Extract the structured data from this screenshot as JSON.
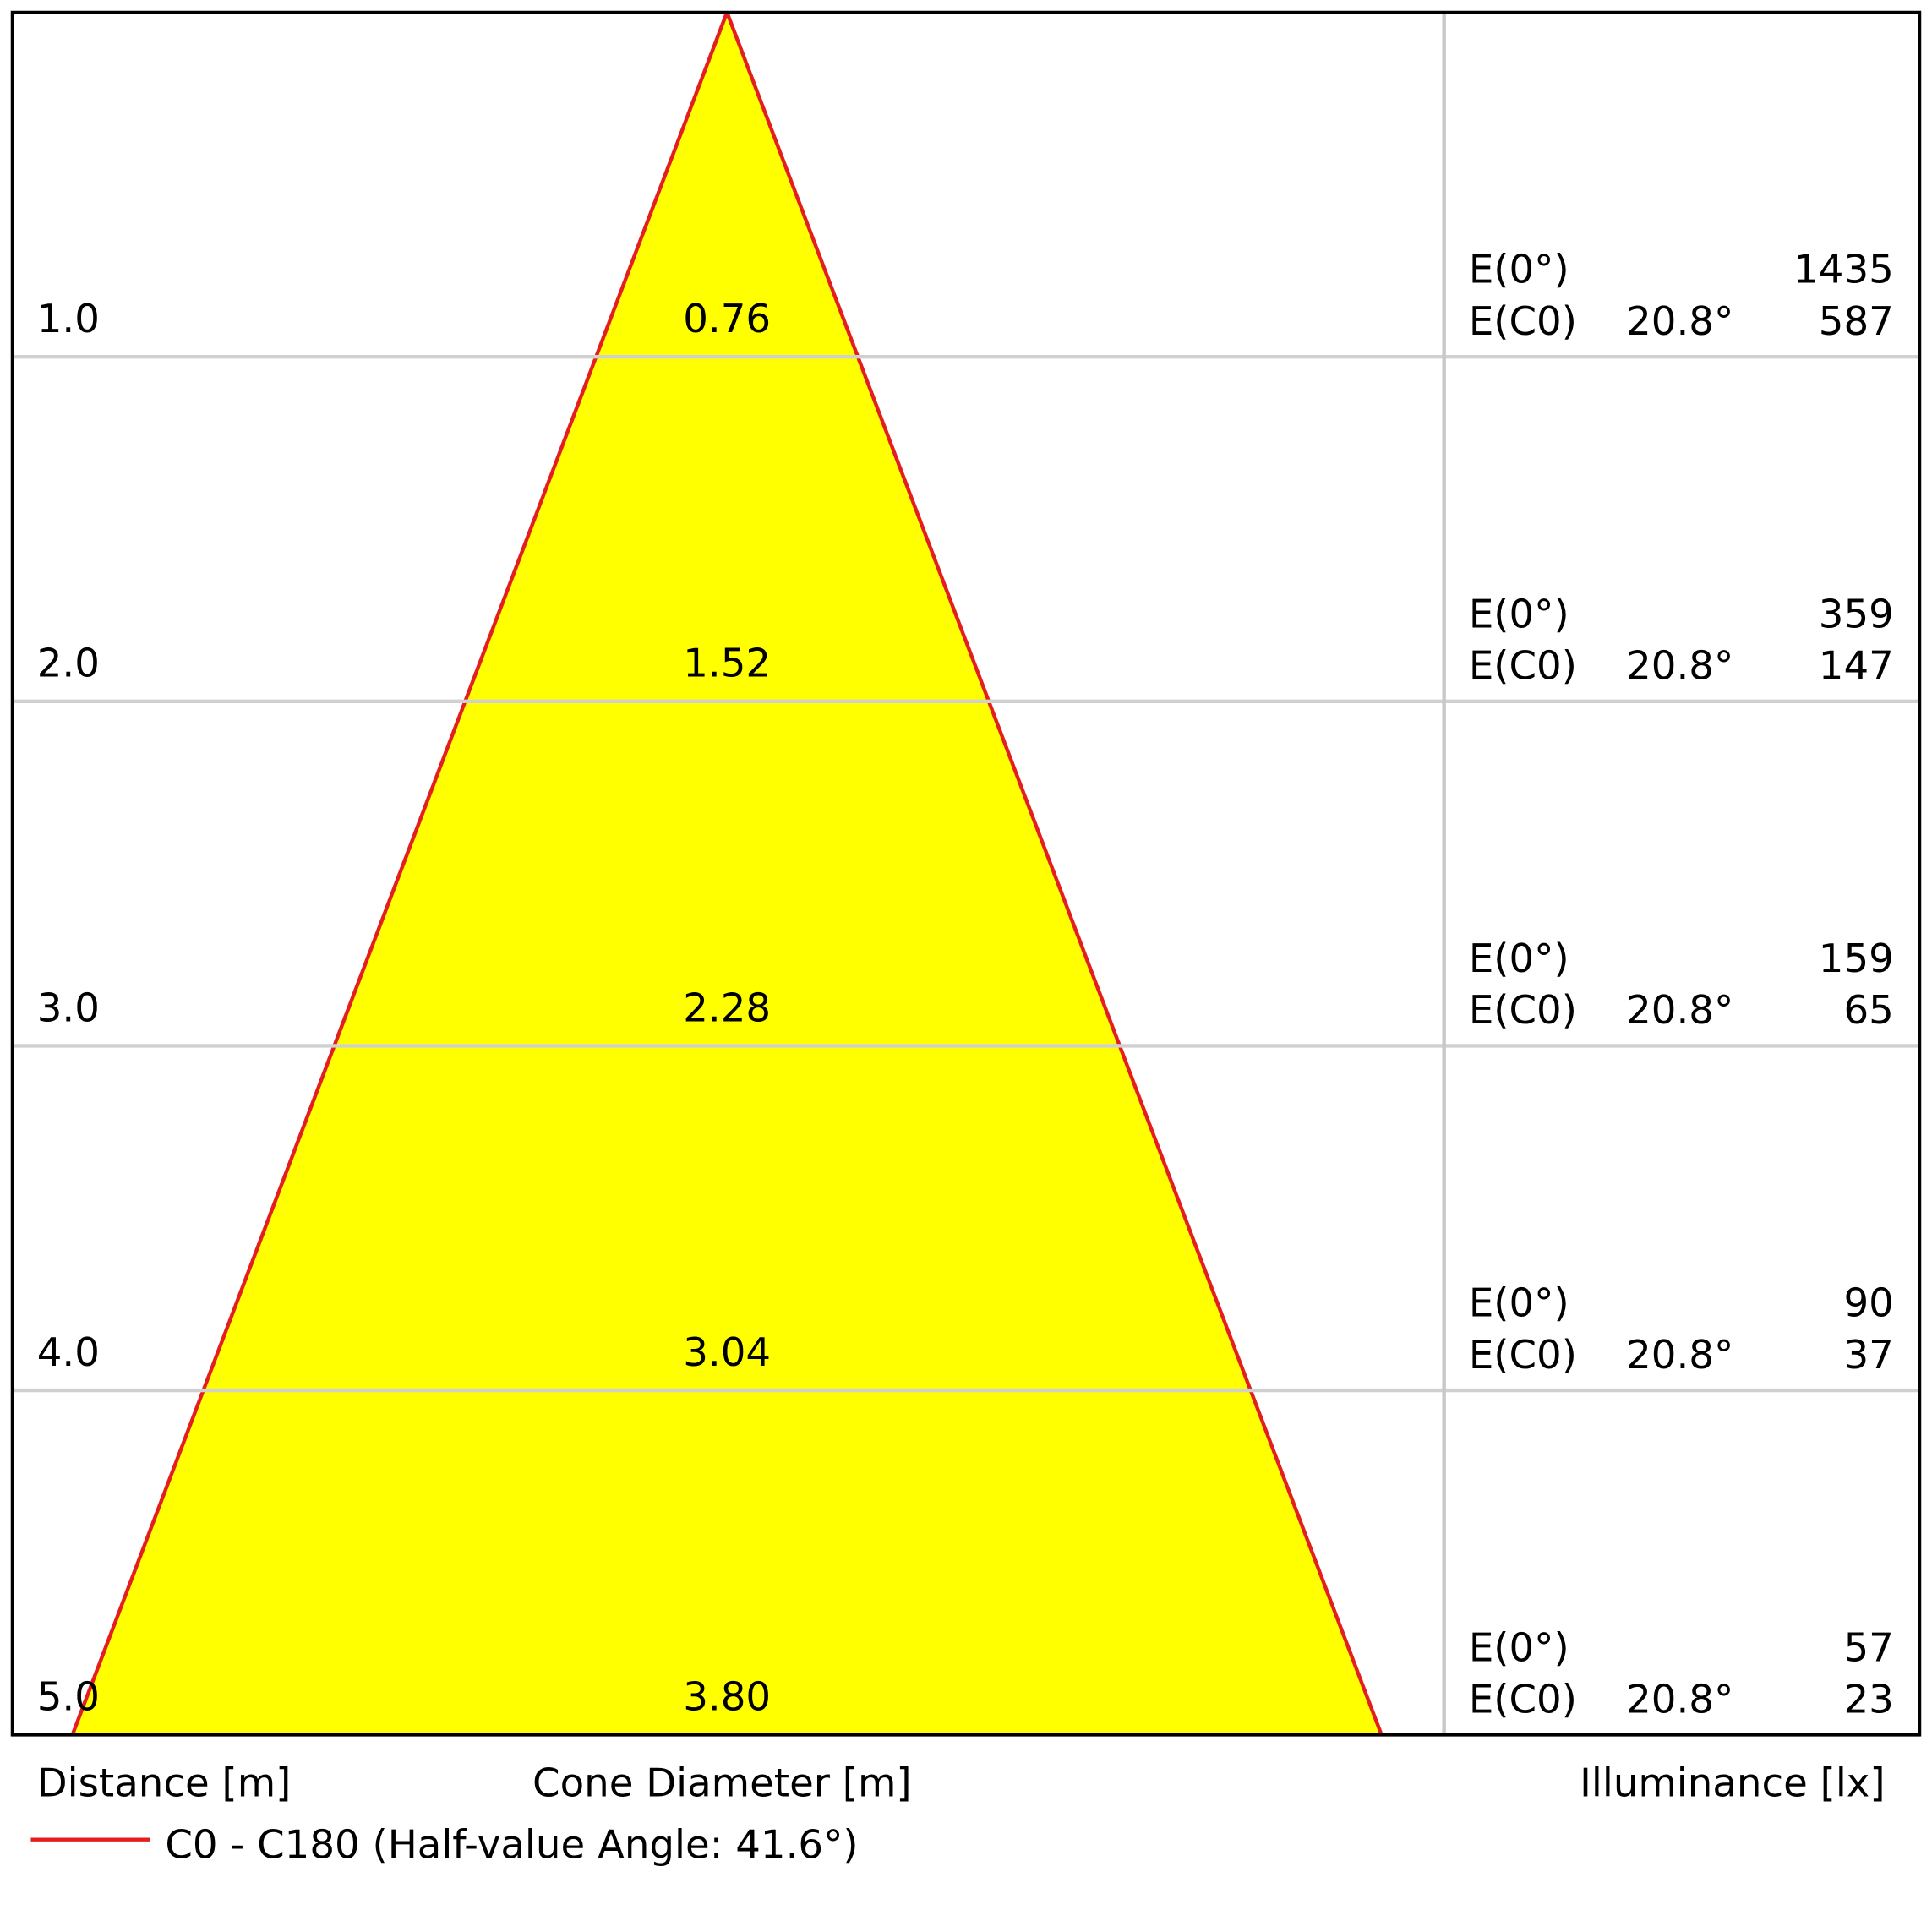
{
  "chart_data": {
    "type": "cone",
    "distances": [
      {
        "value": 1,
        "label": "1.0"
      },
      {
        "value": 2,
        "label": "2.0"
      },
      {
        "value": 3,
        "label": "3.0"
      },
      {
        "value": 4,
        "label": "4.0"
      },
      {
        "value": 5,
        "label": "5.0"
      }
    ],
    "ylim": [
      0,
      5
    ],
    "diameters": [
      0.76,
      1.52,
      2.28,
      3.04,
      3.8
    ],
    "value_labels": [
      "0.76",
      "1.52",
      "2.28",
      "3.04",
      "3.80"
    ],
    "e0_label": "E(0°)",
    "ec0_label": "E(C0)",
    "e0_values": [
      1435,
      359,
      159,
      90,
      57
    ],
    "ec0_angles": [
      "20.8°",
      "20.8°",
      "20.8°",
      "20.8°",
      "20.8°"
    ],
    "ec0_values": [
      587,
      147,
      65,
      37,
      23
    ],
    "x_label_left": "Distance [m]",
    "x_label_center": "Cone Diameter [m]",
    "x_label_right": "Illuminance [lx]",
    "fill_color": "#ffff00",
    "series": [
      {
        "name": "C0 - C180 (Half-value Angle: 41.6°)",
        "color": "#e41e1e"
      }
    ],
    "grid": true
  }
}
